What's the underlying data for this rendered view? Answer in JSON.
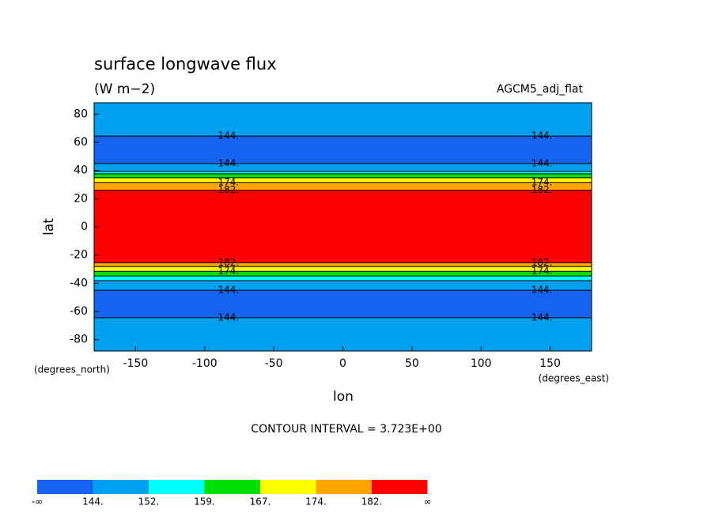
{
  "chart_data": {
    "type": "contour",
    "title": "surface longwave flux",
    "subtitle": "(W m−2)",
    "dataset": "AGCM5_adj_flat",
    "x_label": "lon",
    "y_label": "lat",
    "x_units": "(degrees_east)",
    "y_units": "(degrees_north)",
    "note": "CONTOUR INTERVAL = 3.723E+00",
    "xlim": [
      -180,
      180
    ],
    "ylim": [
      -88,
      88
    ],
    "xticks": [
      -150,
      -100,
      -50,
      0,
      50,
      100,
      150
    ],
    "yticks": [
      -80,
      -60,
      -40,
      -20,
      0,
      20,
      40,
      60,
      80
    ],
    "bands": {
      "lat": [
        88,
        64.4,
        44.9,
        39.3,
        37.6,
        34.8,
        31.5,
        26,
        -25.4,
        -28.2,
        -31.5,
        -34.8,
        -38.1,
        -44.9,
        -64.4,
        -88
      ],
      "level": [
        1,
        0,
        1,
        2,
        3,
        4,
        5,
        6,
        5,
        4,
        3,
        2,
        1,
        0,
        1
      ]
    },
    "contour_labels": [
      {
        "label": "144.",
        "lat": 64.4
      },
      {
        "label": "144.",
        "lat": 44.9
      },
      {
        "label": "174.",
        "lat": 31.5
      },
      {
        "label": "182.",
        "lat": 26
      },
      {
        "label": "182.",
        "lat": -25.4
      },
      {
        "label": "174.",
        "lat": -31.5
      },
      {
        "label": "144.",
        "lat": -44.9
      },
      {
        "label": "144.",
        "lat": -64.4
      }
    ],
    "colorbar": {
      "colors": [
        "#1464f0",
        "#00a0f0",
        "#00ffff",
        "#00e000",
        "#ffff00",
        "#ffa500",
        "#ff0000"
      ],
      "ticks": [
        {
          "label": "-∞"
        },
        {
          "value": 144,
          "label": "144."
        },
        {
          "value": 152,
          "label": "152."
        },
        {
          "value": 159,
          "label": "159."
        },
        {
          "value": 167,
          "label": "167."
        },
        {
          "value": 174,
          "label": "174."
        },
        {
          "value": 182,
          "label": "182."
        },
        {
          "label": "∞"
        }
      ]
    }
  }
}
